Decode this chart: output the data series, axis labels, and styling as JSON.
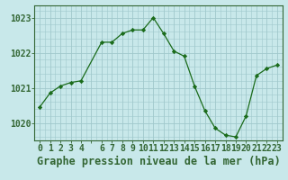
{
  "hours": [
    0,
    1,
    2,
    3,
    4,
    6,
    7,
    8,
    9,
    10,
    11,
    12,
    13,
    14,
    15,
    16,
    17,
    18,
    19,
    20,
    21,
    22,
    23
  ],
  "pressure": [
    1020.45,
    1020.85,
    1021.05,
    1021.15,
    1021.2,
    1022.3,
    1022.3,
    1022.55,
    1022.65,
    1022.65,
    1023.0,
    1022.55,
    1022.05,
    1021.9,
    1021.05,
    1020.35,
    1019.85,
    1019.65,
    1019.6,
    1020.2,
    1021.35,
    1021.55,
    1021.65
  ],
  "line_color": "#1a6b1a",
  "marker_color": "#1a6b1a",
  "bg_color": "#c8e8ea",
  "grid_color": "#a0c8cc",
  "title": "Graphe pression niveau de la mer (hPa)",
  "ylim_min": 1019.5,
  "ylim_max": 1023.35,
  "yticks": [
    1020,
    1021,
    1022,
    1023
  ],
  "title_fontsize": 8.5,
  "tick_fontsize": 7.0,
  "axis_color": "#336633"
}
